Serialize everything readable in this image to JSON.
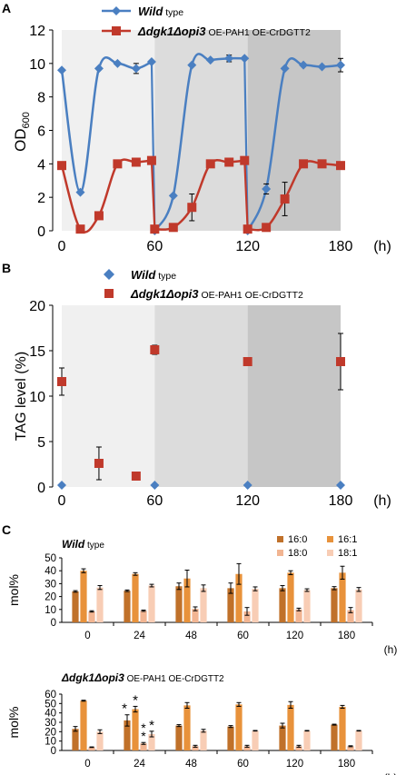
{
  "figure": {
    "panel_a_label": "A",
    "panel_b_label": "B",
    "panel_c_label": "C"
  },
  "colors": {
    "wild_type": "#4a7fc1",
    "mutant": "#c0392b",
    "shade_1": "#f0f0f0",
    "shade_2": "#dcdcdc",
    "shade_3": "#c6c6c6",
    "bar_16_0": "#c0712a",
    "bar_16_1": "#e8923b",
    "bar_18_0": "#f2b592",
    "bar_18_1": "#f8cdb5"
  },
  "chart_data": [
    {
      "panel": "A",
      "type": "line",
      "ylabel": "OD",
      "ylabel_sub": "600",
      "xunit": "(h)",
      "xlim": [
        0,
        180
      ],
      "ylim": [
        0,
        12
      ],
      "yticks": [
        0,
        2,
        4,
        6,
        8,
        10,
        12
      ],
      "xticks": [
        0,
        60,
        120,
        180
      ],
      "shaded_periods": [
        [
          0,
          60
        ],
        [
          60,
          120
        ],
        [
          120,
          180
        ]
      ],
      "series": [
        {
          "name": "Wild type",
          "marker": "diamond",
          "x": [
            0,
            12,
            24,
            36,
            48,
            58,
            60,
            72,
            84,
            96,
            108,
            118,
            120,
            132,
            144,
            156,
            168,
            180
          ],
          "y": [
            9.6,
            2.3,
            9.7,
            10.0,
            9.7,
            10.1,
            0.0,
            2.1,
            9.9,
            10.2,
            10.3,
            10.3,
            0.0,
            2.5,
            9.7,
            9.9,
            9.8,
            9.9
          ],
          "err": [
            0,
            0,
            0,
            0,
            0.3,
            0,
            0,
            0,
            0,
            0,
            0.2,
            0,
            0,
            0.3,
            0,
            0,
            0,
            0.4
          ]
        },
        {
          "name": "Δdgk1Δopi3 OE-PAH1 OE-CrDGTT2",
          "marker": "square",
          "x": [
            0,
            12,
            24,
            36,
            48,
            58,
            60,
            72,
            84,
            96,
            108,
            118,
            120,
            132,
            144,
            156,
            168,
            180
          ],
          "y": [
            3.9,
            0.1,
            0.9,
            4.0,
            4.1,
            4.2,
            0.1,
            0.2,
            1.4,
            4.0,
            4.1,
            4.2,
            0.1,
            0.2,
            1.9,
            4.0,
            4.0,
            3.9
          ],
          "err": [
            0,
            0,
            0,
            0,
            0,
            0,
            0,
            0,
            0.8,
            0.1,
            0,
            0,
            0,
            0,
            1.0,
            0,
            0,
            0
          ]
        }
      ]
    },
    {
      "panel": "B",
      "type": "scatter",
      "ylabel": "TAG level (%)",
      "xunit": "(h)",
      "xlim": [
        0,
        180
      ],
      "ylim": [
        0,
        20
      ],
      "yticks": [
        0,
        5,
        10,
        15,
        20
      ],
      "xticks": [
        0,
        60,
        120,
        180
      ],
      "shaded_periods": [
        [
          0,
          60
        ],
        [
          60,
          120
        ],
        [
          120,
          180
        ]
      ],
      "series": [
        {
          "name": "Wild type",
          "marker": "diamond",
          "x": [
            0,
            60,
            120,
            180
          ],
          "y": [
            0.2,
            0.2,
            0.2,
            0.2
          ],
          "err": [
            0,
            0,
            0,
            0
          ]
        },
        {
          "name": "Δdgk1Δopi3 OE-PAH1 OE-CrDGTT2",
          "marker": "square",
          "x": [
            0,
            24,
            48,
            60,
            120,
            180
          ],
          "y": [
            11.6,
            2.6,
            1.2,
            15.1,
            13.8,
            13.8
          ],
          "err": [
            1.5,
            1.8,
            0,
            0.5,
            0,
            3.1
          ]
        }
      ]
    },
    {
      "panel": "C-top",
      "type": "bar",
      "title": "Wild type",
      "ylabel": "mol%",
      "xunit": "(h)",
      "ylim": [
        0,
        50
      ],
      "yticks": [
        0,
        10,
        20,
        30,
        40,
        50
      ],
      "categories": [
        "0",
        "24",
        "48",
        "60",
        "120",
        "180"
      ],
      "series": [
        {
          "name": "16:0",
          "values": [
            24,
            24.5,
            28,
            26.5,
            26.5,
            26.5
          ],
          "err": [
            0.6,
            0.6,
            2.5,
            4,
            2,
            1.2
          ]
        },
        {
          "name": "16:1",
          "values": [
            40,
            37.5,
            34,
            37.5,
            38.5,
            38.5
          ],
          "err": [
            1.5,
            1,
            6.5,
            8,
            1.5,
            5
          ]
        },
        {
          "name": "18:0",
          "values": [
            8.5,
            9,
            10.5,
            8.5,
            10,
            9.5
          ],
          "err": [
            0.5,
            0.5,
            1.5,
            3,
            1,
            2
          ]
        },
        {
          "name": "18:1",
          "values": [
            27,
            28.5,
            26.5,
            26,
            25,
            25.5
          ],
          "err": [
            1.5,
            1,
            2.5,
            1.5,
            1,
            1.5
          ]
        }
      ]
    },
    {
      "panel": "C-bottom",
      "type": "bar",
      "title": "Δdgk1Δopi3 OE-PAH1 OE-CrDGTT2",
      "ylabel": "mol%",
      "xunit": "(h)",
      "ylim": [
        0,
        60
      ],
      "yticks": [
        0,
        10,
        20,
        30,
        40,
        50,
        60
      ],
      "categories": [
        "0",
        "24",
        "48",
        "60",
        "120",
        "180"
      ],
      "series": [
        {
          "name": "16:0",
          "values": [
            23,
            32,
            26.5,
            25.5,
            26.5,
            27.5
          ],
          "err": [
            2.5,
            6,
            1,
            1,
            2.5,
            0.5
          ]
        },
        {
          "name": "16:1",
          "values": [
            53,
            44,
            48,
            49,
            48.5,
            46.5
          ],
          "err": [
            0.5,
            3,
            3,
            2,
            3.5,
            1.5
          ]
        },
        {
          "name": "18:0",
          "values": [
            3.5,
            7.5,
            4.5,
            4.5,
            4.5,
            4.5
          ],
          "err": [
            0.3,
            1,
            1,
            1,
            1,
            0.5
          ]
        },
        {
          "name": "18:1",
          "values": [
            20,
            17.5,
            21,
            21,
            21,
            21
          ],
          "err": [
            2,
            3,
            1.5,
            0.3,
            0.3,
            0.3
          ]
        }
      ],
      "annotations": [
        {
          "text": "*",
          "category": "24",
          "series": "16:0"
        },
        {
          "text": "*",
          "category": "24",
          "series": "16:1"
        },
        {
          "text": "**",
          "category": "24",
          "series": "18:0"
        },
        {
          "text": "*",
          "category": "24",
          "series": "18:1"
        }
      ]
    }
  ]
}
